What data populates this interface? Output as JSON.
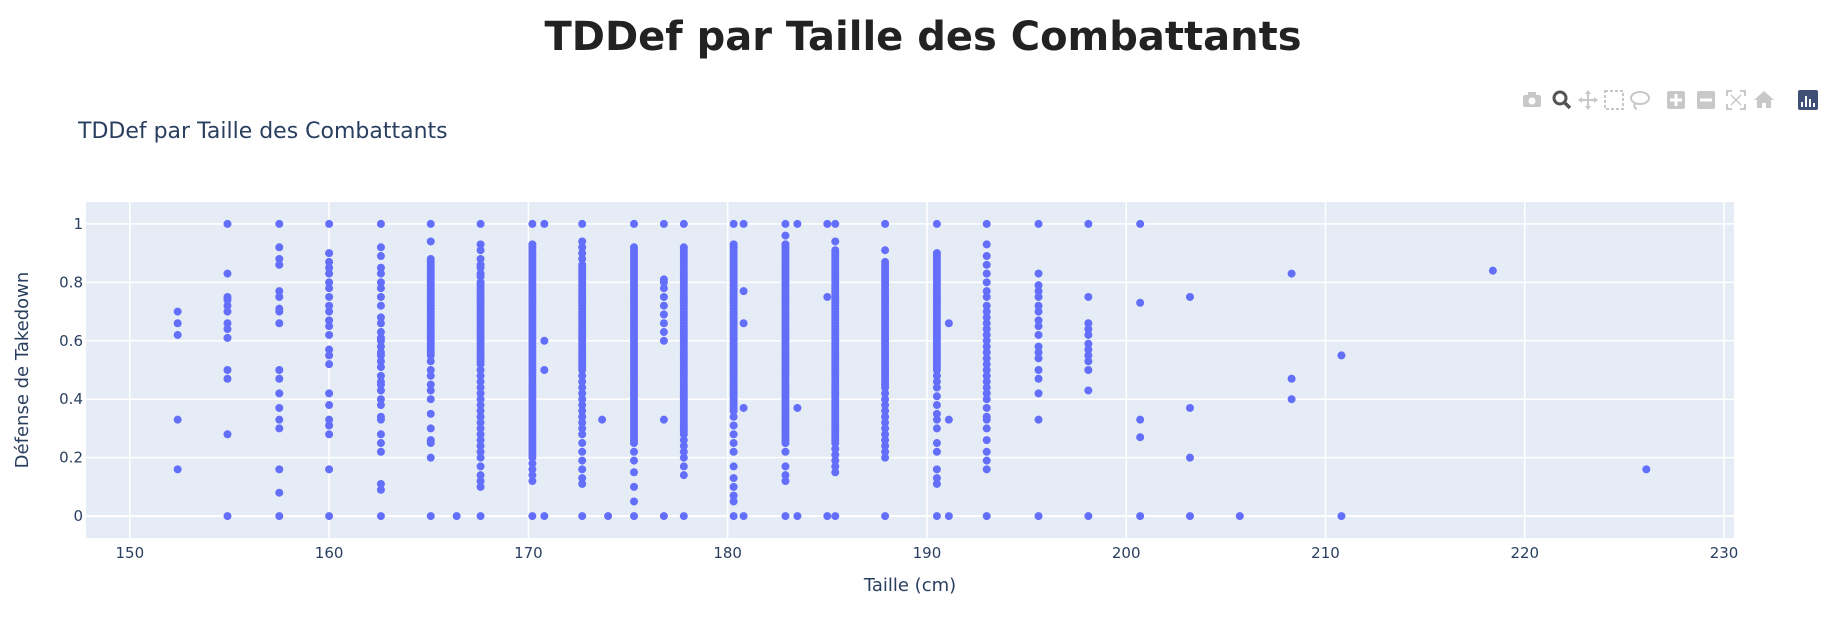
{
  "page": {
    "heading": "TDDef par Taille des Combattants"
  },
  "modebar": {
    "buttons": [
      {
        "name": "camera-icon",
        "active": false
      },
      {
        "name": "zoom-icon",
        "active": true
      },
      {
        "name": "pan-icon",
        "active": false
      },
      {
        "name": "box-select-icon",
        "active": false
      },
      {
        "name": "lasso-select-icon",
        "active": false
      },
      {
        "name": "zoom-in-icon",
        "active": false
      },
      {
        "name": "zoom-out-icon",
        "active": false
      },
      {
        "name": "autoscale-icon",
        "active": false
      },
      {
        "name": "reset-axes-icon",
        "active": false
      },
      {
        "name": "plotly-logo-icon",
        "active": false
      }
    ]
  },
  "chart_data": {
    "type": "scatter",
    "title": "TDDef par Taille des Combattants",
    "xlabel": "Taille (cm)",
    "ylabel": "Défense de Takedown",
    "xlim": [
      147.8,
      230.5
    ],
    "ylim": [
      -0.075,
      1.075
    ],
    "xticks": [
      150,
      160,
      170,
      180,
      190,
      200,
      210,
      220,
      230
    ],
    "yticks": [
      0,
      0.2,
      0.4,
      0.6,
      0.8,
      1
    ],
    "ytick_labels": [
      "0",
      "0.2",
      "0.4",
      "0.6",
      "0.8",
      "1"
    ],
    "grid": true,
    "marker_color": "#636efa",
    "plot_bgcolor": "#e5ecf6",
    "columns": [
      {
        "x": 152.4,
        "y": [
          0.7,
          0.66,
          0.62,
          0.33,
          0.16
        ]
      },
      {
        "x": 154.9,
        "y": [
          1.0,
          0.83,
          0.75,
          0.74,
          0.72,
          0.7,
          0.66,
          0.64,
          0.61,
          0.5,
          0.47,
          0.28,
          0.0
        ]
      },
      {
        "x": 157.5,
        "y": [
          1.0,
          0.92,
          0.88,
          0.86,
          0.77,
          0.75,
          0.71,
          0.7,
          0.66,
          0.5,
          0.47,
          0.42,
          0.37,
          0.33,
          0.3,
          0.16,
          0.08,
          0.0
        ]
      },
      {
        "x": 160.0,
        "y": [
          1.0,
          0.9,
          0.87,
          0.85,
          0.83,
          0.8,
          0.78,
          0.75,
          0.72,
          0.7,
          0.67,
          0.65,
          0.62,
          0.57,
          0.55,
          0.52,
          0.42,
          0.38,
          0.33,
          0.31,
          0.28,
          0.16,
          0.0
        ]
      },
      {
        "x": 162.6,
        "y": [
          1.0,
          0.92,
          0.89,
          0.85,
          0.83,
          0.8,
          0.78,
          0.75,
          0.72,
          0.68,
          0.66,
          0.63,
          0.61,
          0.6,
          0.58,
          0.56,
          0.55,
          0.53,
          0.51,
          0.48,
          0.46,
          0.45,
          0.43,
          0.4,
          0.38,
          0.34,
          0.33,
          0.28,
          0.25,
          0.22,
          0.11,
          0.09,
          0.0
        ]
      },
      {
        "x": 165.1,
        "y": [
          1.0,
          0.94,
          0.88,
          0.87,
          0.86,
          0.85,
          0.84,
          0.83,
          0.82,
          0.81,
          0.8,
          0.79,
          0.78,
          0.77,
          0.76,
          0.75,
          0.74,
          0.73,
          0.72,
          0.71,
          0.7,
          0.69,
          0.68,
          0.67,
          0.66,
          0.65,
          0.64,
          0.63,
          0.62,
          0.61,
          0.6,
          0.59,
          0.58,
          0.57,
          0.56,
          0.55,
          0.53,
          0.5,
          0.48,
          0.45,
          0.43,
          0.4,
          0.35,
          0.3,
          0.26,
          0.25,
          0.2,
          0.0
        ]
      },
      {
        "x": 166.4,
        "y": [
          0.0
        ]
      },
      {
        "x": 167.6,
        "y": [
          1.0,
          0.93,
          0.91,
          0.88,
          0.86,
          0.85,
          0.83,
          0.82,
          0.8,
          0.79,
          0.78,
          0.77,
          0.76,
          0.75,
          0.74,
          0.73,
          0.72,
          0.71,
          0.7,
          0.69,
          0.68,
          0.67,
          0.66,
          0.65,
          0.64,
          0.63,
          0.62,
          0.61,
          0.6,
          0.59,
          0.58,
          0.57,
          0.56,
          0.55,
          0.54,
          0.53,
          0.52,
          0.5,
          0.48,
          0.46,
          0.44,
          0.42,
          0.4,
          0.38,
          0.36,
          0.34,
          0.32,
          0.3,
          0.28,
          0.26,
          0.24,
          0.22,
          0.2,
          0.17,
          0.14,
          0.12,
          0.1,
          0.0
        ]
      },
      {
        "x": 170.2,
        "y": [
          1.0,
          0.93,
          0.92,
          0.91,
          0.9,
          0.89,
          0.88,
          0.87,
          0.86,
          0.85,
          0.84,
          0.83,
          0.82,
          0.81,
          0.8,
          0.79,
          0.78,
          0.77,
          0.76,
          0.75,
          0.74,
          0.73,
          0.72,
          0.71,
          0.7,
          0.69,
          0.68,
          0.67,
          0.66,
          0.65,
          0.64,
          0.63,
          0.62,
          0.61,
          0.6,
          0.59,
          0.58,
          0.57,
          0.56,
          0.55,
          0.54,
          0.53,
          0.52,
          0.51,
          0.5,
          0.49,
          0.48,
          0.47,
          0.46,
          0.45,
          0.44,
          0.43,
          0.42,
          0.41,
          0.4,
          0.39,
          0.38,
          0.37,
          0.36,
          0.35,
          0.34,
          0.33,
          0.32,
          0.31,
          0.3,
          0.29,
          0.28,
          0.27,
          0.26,
          0.25,
          0.24,
          0.23,
          0.22,
          0.21,
          0.2,
          0.18,
          0.16,
          0.14,
          0.12,
          0.0
        ]
      },
      {
        "x": 170.8,
        "y": [
          1.0,
          0.6,
          0.5,
          0.0
        ]
      },
      {
        "x": 172.7,
        "y": [
          1.0,
          0.94,
          0.92,
          0.9,
          0.88,
          0.86,
          0.85,
          0.84,
          0.83,
          0.82,
          0.81,
          0.8,
          0.79,
          0.78,
          0.77,
          0.76,
          0.75,
          0.74,
          0.73,
          0.72,
          0.71,
          0.7,
          0.69,
          0.68,
          0.67,
          0.66,
          0.65,
          0.64,
          0.63,
          0.62,
          0.61,
          0.6,
          0.59,
          0.58,
          0.57,
          0.56,
          0.55,
          0.54,
          0.53,
          0.52,
          0.51,
          0.5,
          0.48,
          0.46,
          0.44,
          0.42,
          0.4,
          0.38,
          0.36,
          0.34,
          0.32,
          0.3,
          0.28,
          0.25,
          0.22,
          0.19,
          0.16,
          0.13,
          0.11,
          0.0
        ]
      },
      {
        "x": 173.7,
        "y": [
          0.33
        ]
      },
      {
        "x": 174.0,
        "y": [
          0.0
        ]
      },
      {
        "x": 175.3,
        "y": [
          1.0,
          0.92,
          0.91,
          0.9,
          0.89,
          0.88,
          0.87,
          0.86,
          0.85,
          0.84,
          0.83,
          0.82,
          0.81,
          0.8,
          0.79,
          0.78,
          0.77,
          0.76,
          0.75,
          0.74,
          0.73,
          0.72,
          0.71,
          0.7,
          0.69,
          0.68,
          0.67,
          0.66,
          0.65,
          0.64,
          0.63,
          0.62,
          0.61,
          0.6,
          0.59,
          0.58,
          0.57,
          0.56,
          0.55,
          0.54,
          0.53,
          0.52,
          0.51,
          0.5,
          0.49,
          0.48,
          0.47,
          0.46,
          0.45,
          0.44,
          0.43,
          0.42,
          0.41,
          0.4,
          0.39,
          0.38,
          0.37,
          0.36,
          0.35,
          0.34,
          0.33,
          0.32,
          0.31,
          0.3,
          0.29,
          0.28,
          0.27,
          0.26,
          0.25,
          0.22,
          0.19,
          0.15,
          0.1,
          0.05,
          0.0
        ]
      },
      {
        "x": 176.8,
        "y": [
          1.0,
          0.81,
          0.8,
          0.78,
          0.75,
          0.72,
          0.69,
          0.66,
          0.63,
          0.6,
          0.33,
          0.0
        ]
      },
      {
        "x": 177.8,
        "y": [
          1.0,
          0.92,
          0.91,
          0.9,
          0.89,
          0.88,
          0.87,
          0.86,
          0.85,
          0.84,
          0.83,
          0.82,
          0.81,
          0.8,
          0.79,
          0.78,
          0.77,
          0.76,
          0.75,
          0.74,
          0.73,
          0.72,
          0.71,
          0.7,
          0.69,
          0.68,
          0.67,
          0.66,
          0.65,
          0.64,
          0.63,
          0.62,
          0.61,
          0.6,
          0.59,
          0.58,
          0.57,
          0.56,
          0.55,
          0.54,
          0.53,
          0.52,
          0.51,
          0.5,
          0.49,
          0.48,
          0.47,
          0.46,
          0.45,
          0.44,
          0.43,
          0.42,
          0.41,
          0.4,
          0.39,
          0.38,
          0.37,
          0.36,
          0.35,
          0.34,
          0.33,
          0.32,
          0.31,
          0.3,
          0.29,
          0.28,
          0.26,
          0.24,
          0.22,
          0.2,
          0.17,
          0.14,
          0.0
        ]
      },
      {
        "x": 180.3,
        "y": [
          1.0,
          0.93,
          0.92,
          0.91,
          0.9,
          0.89,
          0.88,
          0.87,
          0.86,
          0.85,
          0.84,
          0.83,
          0.82,
          0.81,
          0.8,
          0.79,
          0.78,
          0.77,
          0.76,
          0.75,
          0.74,
          0.73,
          0.72,
          0.71,
          0.7,
          0.69,
          0.68,
          0.67,
          0.66,
          0.65,
          0.64,
          0.63,
          0.62,
          0.61,
          0.6,
          0.59,
          0.58,
          0.57,
          0.56,
          0.55,
          0.54,
          0.53,
          0.52,
          0.51,
          0.5,
          0.49,
          0.48,
          0.47,
          0.46,
          0.45,
          0.44,
          0.43,
          0.42,
          0.41,
          0.4,
          0.39,
          0.38,
          0.37,
          0.36,
          0.34,
          0.31,
          0.28,
          0.25,
          0.22,
          0.17,
          0.13,
          0.1,
          0.07,
          0.05,
          0.0
        ]
      },
      {
        "x": 180.8,
        "y": [
          1.0,
          0.77,
          0.66,
          0.37,
          0.0
        ]
      },
      {
        "x": 182.9,
        "y": [
          1.0,
          0.96,
          0.93,
          0.92,
          0.91,
          0.9,
          0.89,
          0.88,
          0.87,
          0.86,
          0.85,
          0.84,
          0.83,
          0.82,
          0.81,
          0.8,
          0.79,
          0.78,
          0.77,
          0.76,
          0.75,
          0.74,
          0.73,
          0.72,
          0.71,
          0.7,
          0.69,
          0.68,
          0.67,
          0.66,
          0.65,
          0.64,
          0.63,
          0.62,
          0.61,
          0.6,
          0.59,
          0.58,
          0.57,
          0.56,
          0.55,
          0.54,
          0.53,
          0.52,
          0.51,
          0.5,
          0.49,
          0.48,
          0.47,
          0.46,
          0.45,
          0.44,
          0.43,
          0.42,
          0.41,
          0.4,
          0.39,
          0.38,
          0.37,
          0.36,
          0.35,
          0.34,
          0.33,
          0.32,
          0.31,
          0.3,
          0.29,
          0.28,
          0.27,
          0.26,
          0.25,
          0.22,
          0.17,
          0.14,
          0.12,
          0.0
        ]
      },
      {
        "x": 183.5,
        "y": [
          1.0,
          0.37,
          0.0
        ]
      },
      {
        "x": 185.0,
        "y": [
          1.0,
          0.75,
          0.0
        ]
      },
      {
        "x": 185.4,
        "y": [
          1.0,
          0.94,
          0.91,
          0.9,
          0.89,
          0.88,
          0.87,
          0.86,
          0.85,
          0.84,
          0.83,
          0.82,
          0.81,
          0.8,
          0.79,
          0.78,
          0.77,
          0.76,
          0.75,
          0.74,
          0.73,
          0.72,
          0.71,
          0.7,
          0.69,
          0.68,
          0.67,
          0.66,
          0.65,
          0.64,
          0.63,
          0.62,
          0.61,
          0.6,
          0.59,
          0.58,
          0.57,
          0.56,
          0.55,
          0.54,
          0.53,
          0.52,
          0.51,
          0.5,
          0.49,
          0.48,
          0.47,
          0.46,
          0.45,
          0.44,
          0.43,
          0.42,
          0.41,
          0.4,
          0.39,
          0.38,
          0.37,
          0.36,
          0.35,
          0.34,
          0.33,
          0.32,
          0.31,
          0.3,
          0.29,
          0.28,
          0.27,
          0.26,
          0.25,
          0.23,
          0.21,
          0.19,
          0.17,
          0.15,
          0.0
        ]
      },
      {
        "x": 187.9,
        "y": [
          1.0,
          0.91,
          0.87,
          0.86,
          0.85,
          0.84,
          0.83,
          0.82,
          0.81,
          0.8,
          0.79,
          0.78,
          0.77,
          0.76,
          0.75,
          0.74,
          0.73,
          0.72,
          0.71,
          0.7,
          0.69,
          0.68,
          0.67,
          0.66,
          0.65,
          0.64,
          0.63,
          0.62,
          0.61,
          0.6,
          0.59,
          0.58,
          0.57,
          0.56,
          0.55,
          0.54,
          0.53,
          0.52,
          0.51,
          0.5,
          0.49,
          0.48,
          0.47,
          0.46,
          0.45,
          0.44,
          0.42,
          0.4,
          0.38,
          0.36,
          0.34,
          0.32,
          0.3,
          0.28,
          0.26,
          0.24,
          0.22,
          0.2,
          0.0
        ]
      },
      {
        "x": 190.5,
        "y": [
          1.0,
          0.9,
          0.89,
          0.88,
          0.87,
          0.86,
          0.85,
          0.84,
          0.83,
          0.82,
          0.81,
          0.8,
          0.79,
          0.78,
          0.77,
          0.76,
          0.75,
          0.74,
          0.73,
          0.72,
          0.71,
          0.7,
          0.69,
          0.68,
          0.67,
          0.66,
          0.65,
          0.64,
          0.63,
          0.62,
          0.61,
          0.6,
          0.59,
          0.58,
          0.57,
          0.56,
          0.55,
          0.54,
          0.53,
          0.52,
          0.51,
          0.5,
          0.48,
          0.46,
          0.44,
          0.41,
          0.38,
          0.35,
          0.33,
          0.3,
          0.25,
          0.22,
          0.16,
          0.13,
          0.11,
          0.0
        ]
      },
      {
        "x": 191.1,
        "y": [
          0.66,
          0.33,
          0.0
        ]
      },
      {
        "x": 193.0,
        "y": [
          1.0,
          0.93,
          0.89,
          0.86,
          0.83,
          0.8,
          0.77,
          0.75,
          0.72,
          0.7,
          0.68,
          0.66,
          0.64,
          0.62,
          0.6,
          0.58,
          0.56,
          0.54,
          0.52,
          0.5,
          0.48,
          0.46,
          0.44,
          0.42,
          0.4,
          0.37,
          0.34,
          0.33,
          0.3,
          0.26,
          0.22,
          0.19,
          0.16,
          0.0
        ]
      },
      {
        "x": 195.6,
        "y": [
          1.0,
          0.83,
          0.79,
          0.77,
          0.75,
          0.72,
          0.7,
          0.67,
          0.65,
          0.62,
          0.58,
          0.56,
          0.54,
          0.5,
          0.47,
          0.42,
          0.33,
          0.0
        ]
      },
      {
        "x": 198.1,
        "y": [
          1.0,
          0.75,
          0.66,
          0.64,
          0.62,
          0.59,
          0.57,
          0.55,
          0.53,
          0.5,
          0.43,
          0.0
        ]
      },
      {
        "x": 200.7,
        "y": [
          1.0,
          0.73,
          0.33,
          0.27,
          0.0
        ]
      },
      {
        "x": 203.2,
        "y": [
          0.75,
          0.37,
          0.2,
          0.0
        ]
      },
      {
        "x": 205.7,
        "y": [
          0.0
        ]
      },
      {
        "x": 208.3,
        "y": [
          0.83,
          0.47,
          0.4
        ]
      },
      {
        "x": 210.8,
        "y": [
          0.55,
          0.0
        ]
      },
      {
        "x": 218.4,
        "y": [
          0.84
        ]
      },
      {
        "x": 226.1,
        "y": [
          0.16
        ]
      }
    ]
  }
}
